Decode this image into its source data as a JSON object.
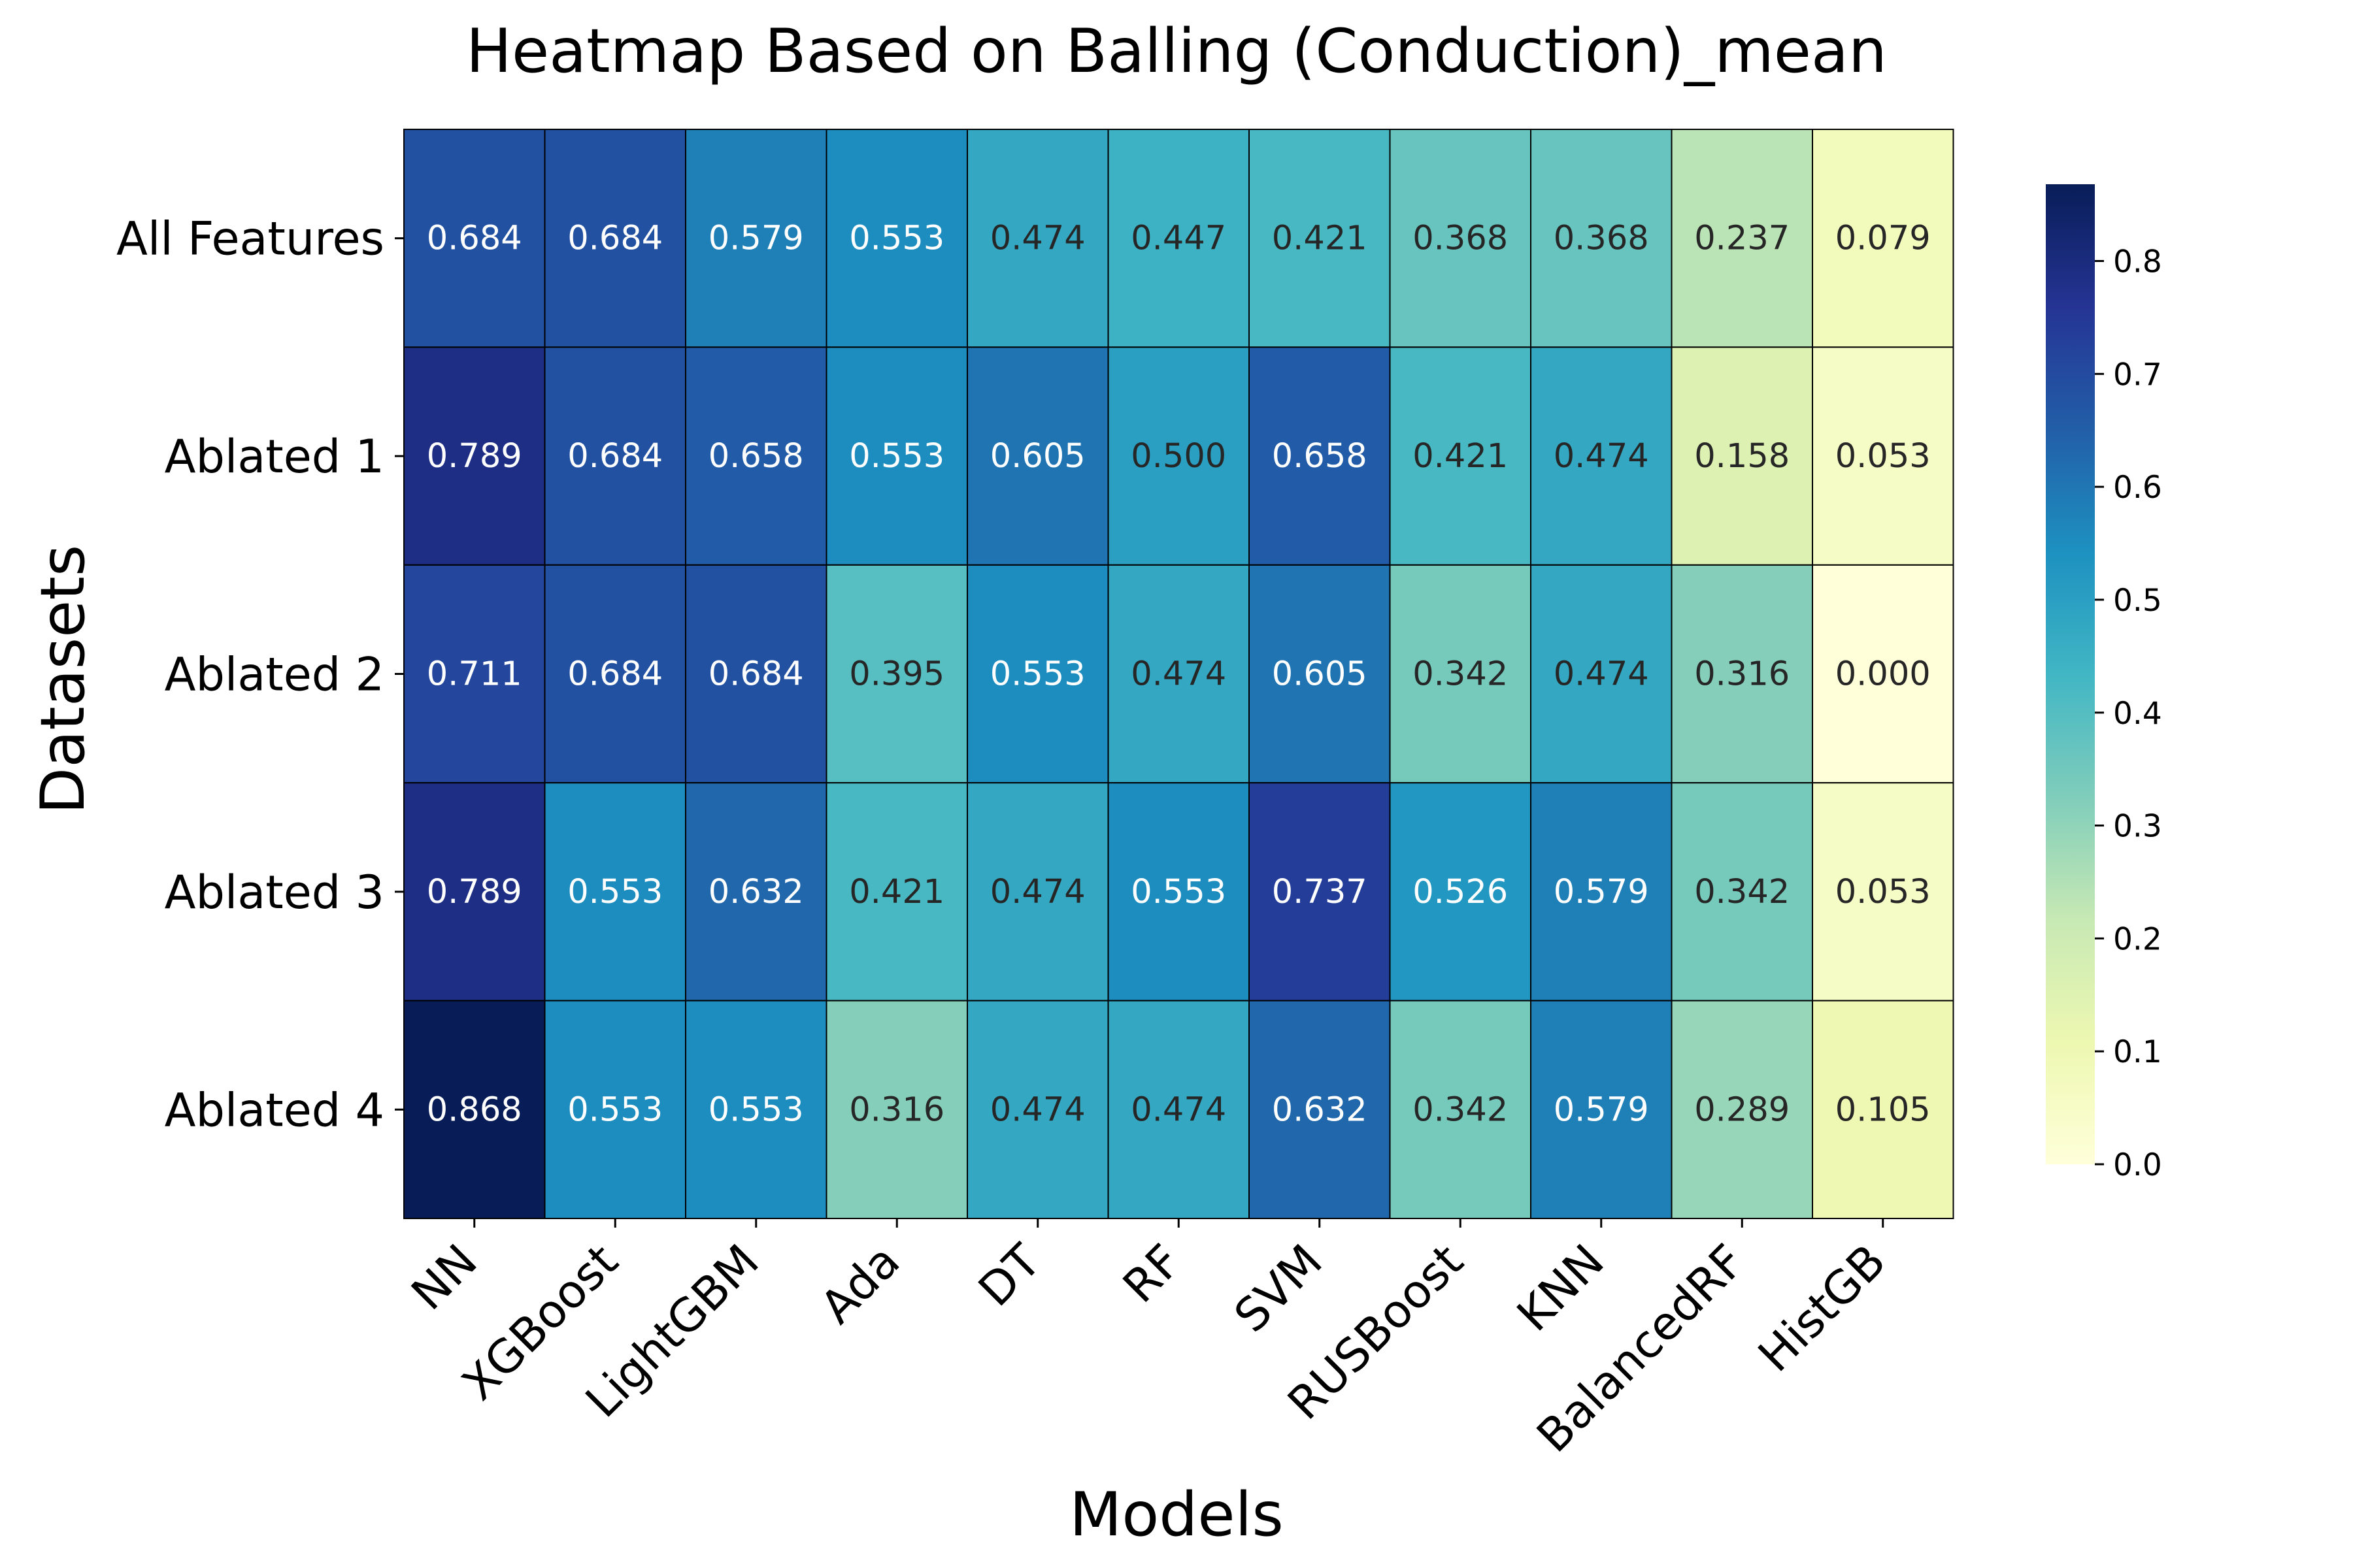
{
  "chart_data": {
    "type": "heatmap",
    "title": "Heatmap Based on Balling (Conduction)_mean",
    "xlabel": "Models",
    "ylabel": "Datasets",
    "columns": [
      "NN",
      "XGBoost",
      "LightGBM",
      "Ada",
      "DT",
      "RF",
      "SVM",
      "RUSBoost",
      "KNN",
      "BalancedRF",
      "HistGB"
    ],
    "rows": [
      "All Features",
      "Ablated 1",
      "Ablated 2",
      "Ablated 3",
      "Ablated 4"
    ],
    "values": [
      [
        0.684,
        0.684,
        0.579,
        0.553,
        0.474,
        0.447,
        0.421,
        0.368,
        0.368,
        0.237,
        0.079
      ],
      [
        0.789,
        0.684,
        0.658,
        0.553,
        0.605,
        0.5,
        0.658,
        0.421,
        0.474,
        0.158,
        0.053
      ],
      [
        0.711,
        0.684,
        0.684,
        0.395,
        0.553,
        0.474,
        0.605,
        0.342,
        0.474,
        0.316,
        0.0
      ],
      [
        0.789,
        0.553,
        0.632,
        0.421,
        0.474,
        0.553,
        0.737,
        0.526,
        0.579,
        0.342,
        0.053
      ],
      [
        0.868,
        0.553,
        0.553,
        0.316,
        0.474,
        0.474,
        0.632,
        0.342,
        0.579,
        0.289,
        0.105
      ]
    ],
    "value_format": "3 decimals",
    "colorbar": {
      "range": [
        0,
        0.868
      ],
      "ticks": [
        0.0,
        0.1,
        0.2,
        0.3,
        0.4,
        0.5,
        0.6,
        0.7,
        0.8
      ],
      "colormap": "YlGnBu"
    },
    "colormap_stops": [
      "#ffffd9",
      "#edf8b1",
      "#c7e9b4",
      "#7fcdbb",
      "#41b6c4",
      "#1d91c0",
      "#225ea8",
      "#253494",
      "#081d58"
    ],
    "grid": false,
    "cell_border_color": "#000000"
  }
}
